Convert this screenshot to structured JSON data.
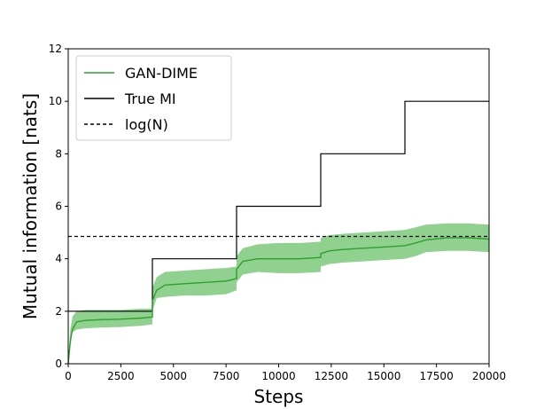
{
  "chart_data": {
    "type": "line",
    "xlabel": "Steps",
    "ylabel": "Mutual information [nats]",
    "xlim": [
      0,
      20000
    ],
    "ylim": [
      0,
      12
    ],
    "xticks": [
      0,
      2500,
      5000,
      7500,
      10000,
      12500,
      15000,
      17500,
      20000
    ],
    "xtick_labels": [
      "0",
      "2500",
      "5000",
      "7500",
      "10000",
      "12500",
      "15000",
      "17500",
      "20000"
    ],
    "yticks": [
      0,
      2,
      4,
      6,
      8,
      10,
      12
    ],
    "ytick_labels": [
      "0",
      "2",
      "4",
      "6",
      "8",
      "10",
      "12"
    ],
    "grid": false,
    "legend_position": "top-left",
    "legend": [
      "GAN-DIME",
      "True MI",
      "log(N)"
    ],
    "series": [
      {
        "name": "GAN-DIME",
        "style": "solid",
        "color": "#2ca02c",
        "band_color": "#7dc97d",
        "x": [
          0,
          100,
          200,
          400,
          800,
          1500,
          2500,
          3500,
          3999,
          4000,
          4200,
          4600,
          5500,
          6500,
          7500,
          7999,
          8000,
          8300,
          9000,
          10000,
          11000,
          11999,
          12000,
          12400,
          13000,
          14000,
          15000,
          16000,
          16500,
          17000,
          18000,
          19000,
          20000
        ],
        "values": [
          0.0,
          0.9,
          1.3,
          1.6,
          1.65,
          1.68,
          1.7,
          1.74,
          1.78,
          2.4,
          2.8,
          3.0,
          3.05,
          3.1,
          3.15,
          3.25,
          3.6,
          3.9,
          4.0,
          4.0,
          4.0,
          4.05,
          4.2,
          4.3,
          4.35,
          4.4,
          4.45,
          4.5,
          4.6,
          4.72,
          4.8,
          4.8,
          4.75
        ],
        "band_lower": [
          0.0,
          0.6,
          1.2,
          1.3,
          1.35,
          1.38,
          1.4,
          1.45,
          1.5,
          2.0,
          2.5,
          2.55,
          2.6,
          2.6,
          2.65,
          2.8,
          3.1,
          3.4,
          3.5,
          3.45,
          3.45,
          3.5,
          3.7,
          3.8,
          3.85,
          3.9,
          3.95,
          4.0,
          4.1,
          4.25,
          4.3,
          4.3,
          4.25
        ],
        "band_upper": [
          0.0,
          1.3,
          1.8,
          2.0,
          2.05,
          2.05,
          2.05,
          2.1,
          2.1,
          2.9,
          3.3,
          3.5,
          3.55,
          3.6,
          3.65,
          3.7,
          4.1,
          4.4,
          4.55,
          4.6,
          4.6,
          4.65,
          4.8,
          4.9,
          4.95,
          5.0,
          5.05,
          5.1,
          5.2,
          5.3,
          5.35,
          5.35,
          5.3
        ]
      },
      {
        "name": "True MI",
        "style": "step",
        "color": "#000000",
        "x": [
          0,
          4000,
          4000,
          8000,
          8000,
          12000,
          12000,
          16000,
          16000,
          20000
        ],
        "values": [
          2,
          2,
          4,
          4,
          6,
          6,
          8,
          8,
          10,
          10
        ]
      },
      {
        "name": "log(N)",
        "style": "dashed",
        "color": "#000000",
        "x": [
          0,
          20000
        ],
        "values": [
          4.85,
          4.85
        ]
      }
    ]
  }
}
